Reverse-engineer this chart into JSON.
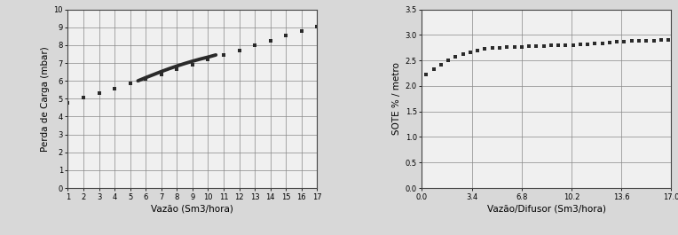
{
  "chart1": {
    "xlabel": "Vazão (Sm3/hora)",
    "ylabel": "Perda de Carga (mbar)",
    "xlim": [
      1,
      17
    ],
    "ylim": [
      0,
      10
    ],
    "xticks": [
      1,
      2,
      3,
      4,
      5,
      6,
      7,
      8,
      9,
      10,
      11,
      12,
      13,
      14,
      15,
      16,
      17
    ],
    "yticks": [
      0,
      1,
      2,
      3,
      4,
      5,
      6,
      7,
      8,
      9,
      10
    ],
    "dotted_x": [
      1,
      2,
      3,
      4,
      5,
      6,
      7,
      8,
      9,
      10,
      11,
      12,
      13,
      14,
      15,
      16,
      17
    ],
    "dotted_y": [
      4.78,
      5.05,
      5.32,
      5.58,
      5.85,
      6.12,
      6.38,
      6.65,
      6.92,
      7.18,
      7.45,
      7.72,
      7.98,
      8.25,
      8.52,
      8.78,
      9.05
    ],
    "solid_x": [
      5.5,
      6.0,
      6.5,
      7.0,
      7.5,
      8.0,
      8.5,
      9.0,
      9.5,
      10.0,
      10.5
    ],
    "solid_y": [
      6.0,
      6.18,
      6.35,
      6.52,
      6.68,
      6.83,
      6.97,
      7.1,
      7.22,
      7.33,
      7.45
    ]
  },
  "chart2": {
    "xlabel": "Vazão/Difusor (Sm3/hora)",
    "ylabel": "SOTE % / metro",
    "xlim": [
      0,
      17
    ],
    "ylim": [
      0,
      3.5
    ],
    "xticks": [
      0,
      3.4,
      6.8,
      10.2,
      13.6,
      17
    ],
    "yticks": [
      0,
      0.5,
      1.0,
      1.5,
      2.0,
      2.5,
      3.0,
      3.5
    ],
    "dotted_x": [
      0.3,
      0.8,
      1.3,
      1.8,
      2.3,
      2.8,
      3.3,
      3.8,
      4.3,
      4.8,
      5.3,
      5.8,
      6.3,
      6.8,
      7.3,
      7.8,
      8.3,
      8.8,
      9.3,
      9.8,
      10.3,
      10.8,
      11.3,
      11.8,
      12.3,
      12.8,
      13.3,
      13.8,
      14.3,
      14.8,
      15.3,
      15.8,
      16.3,
      16.8
    ],
    "dotted_y": [
      2.23,
      2.33,
      2.42,
      2.5,
      2.57,
      2.62,
      2.66,
      2.69,
      2.72,
      2.74,
      2.75,
      2.76,
      2.77,
      2.77,
      2.78,
      2.78,
      2.78,
      2.79,
      2.79,
      2.79,
      2.8,
      2.81,
      2.82,
      2.83,
      2.84,
      2.85,
      2.86,
      2.87,
      2.88,
      2.88,
      2.89,
      2.89,
      2.9,
      2.9
    ]
  },
  "line_color": "#2a2a2a",
  "bg_color": "#f0f0f0",
  "plot_bg": "#f0f0f0",
  "grid_color": "#888888",
  "outer_bg": "#d8d8d8"
}
